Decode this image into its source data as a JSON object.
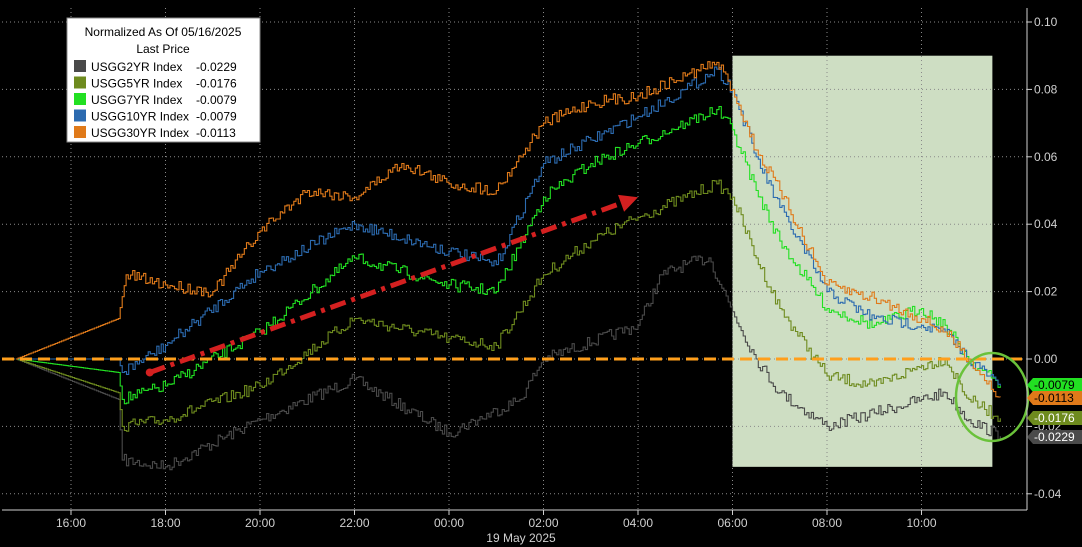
{
  "chart_data": {
    "type": "line",
    "legend": {
      "title_line1": "Normalized As Of 05/16/2025",
      "title_line2": "Last Price",
      "placement": "top-left"
    },
    "date_label": "19 May 2025",
    "x_ticks": [
      "16:00",
      "18:00",
      "20:00",
      "22:00",
      "00:00",
      "02:00",
      "04:00",
      "06:00",
      "08:00",
      "10:00"
    ],
    "y_ticks": [
      "0.10",
      "0.08",
      "0.06",
      "0.04",
      "0.02",
      "0.00",
      "-0.02",
      "-0.04"
    ],
    "ylim": [
      -0.045,
      0.105
    ],
    "grid": true,
    "reference_line": {
      "y": 0.0,
      "color": "#ff9f1c",
      "style": "dashed"
    },
    "shaded_region": {
      "x_start": "06:00",
      "x_end": "11:30",
      "y_range": [
        -0.032,
        0.09
      ],
      "color": "#dff1d4"
    },
    "series": [
      {
        "name": "USGG2YR Index",
        "last_label": "-0.0229",
        "color": "#4a4a4a",
        "points": [
          [
            "14:50",
            0.0
          ],
          [
            "17:00",
            -0.012
          ],
          [
            "17:05",
            -0.03
          ],
          [
            "18:00",
            -0.032
          ],
          [
            "20:00",
            -0.018
          ],
          [
            "22:00",
            -0.006
          ],
          [
            "00:00",
            -0.022
          ],
          [
            "01:30",
            -0.012
          ],
          [
            "02:00",
            0.0
          ],
          [
            "04:00",
            0.01
          ],
          [
            "04:30",
            0.025
          ],
          [
            "05:00",
            0.028
          ],
          [
            "05:30",
            0.03
          ],
          [
            "06:00",
            0.014
          ],
          [
            "06:30",
            0.0
          ],
          [
            "07:00",
            -0.01
          ],
          [
            "08:00",
            -0.02
          ],
          [
            "09:00",
            -0.016
          ],
          [
            "10:00",
            -0.012
          ],
          [
            "10:30",
            -0.01
          ],
          [
            "11:00",
            -0.018
          ],
          [
            "11:40",
            -0.0229
          ]
        ]
      },
      {
        "name": "USGG5YR Index",
        "last_label": "-0.0176",
        "color": "#6e8b1e",
        "points": [
          [
            "14:50",
            0.0
          ],
          [
            "17:00",
            -0.01
          ],
          [
            "17:05",
            -0.02
          ],
          [
            "18:00",
            -0.018
          ],
          [
            "20:00",
            -0.008
          ],
          [
            "22:00",
            0.012
          ],
          [
            "00:00",
            0.006
          ],
          [
            "01:00",
            0.004
          ],
          [
            "02:00",
            0.025
          ],
          [
            "03:00",
            0.035
          ],
          [
            "04:00",
            0.042
          ],
          [
            "05:00",
            0.048
          ],
          [
            "05:40",
            0.052
          ],
          [
            "06:00",
            0.048
          ],
          [
            "06:30",
            0.03
          ],
          [
            "07:00",
            0.015
          ],
          [
            "08:00",
            -0.005
          ],
          [
            "09:00",
            -0.008
          ],
          [
            "10:00",
            -0.002
          ],
          [
            "10:30",
            0.0
          ],
          [
            "11:00",
            -0.012
          ],
          [
            "11:40",
            -0.0176
          ]
        ]
      },
      {
        "name": "USGG7YR Index",
        "last_label": "-0.0079",
        "color": "#22e022",
        "points": [
          [
            "14:50",
            0.0
          ],
          [
            "17:00",
            -0.004
          ],
          [
            "17:05",
            -0.012
          ],
          [
            "18:00",
            -0.008
          ],
          [
            "20:00",
            0.008
          ],
          [
            "22:00",
            0.03
          ],
          [
            "00:00",
            0.022
          ],
          [
            "01:00",
            0.02
          ],
          [
            "02:00",
            0.048
          ],
          [
            "03:00",
            0.058
          ],
          [
            "04:00",
            0.064
          ],
          [
            "05:00",
            0.07
          ],
          [
            "05:40",
            0.074
          ],
          [
            "06:00",
            0.068
          ],
          [
            "06:30",
            0.05
          ],
          [
            "07:00",
            0.035
          ],
          [
            "08:00",
            0.015
          ],
          [
            "09:00",
            0.01
          ],
          [
            "10:00",
            0.015
          ],
          [
            "10:30",
            0.01
          ],
          [
            "11:00",
            0.0
          ],
          [
            "11:40",
            -0.0079
          ]
        ]
      },
      {
        "name": "USGG10YR Index",
        "last_label": "-0.0079",
        "color": "#2c6bb0",
        "points": [
          [
            "14:50",
            0.0
          ],
          [
            "17:00",
            0.0
          ],
          [
            "17:05",
            -0.004
          ],
          [
            "18:00",
            0.004
          ],
          [
            "20:00",
            0.026
          ],
          [
            "22:00",
            0.04
          ],
          [
            "00:00",
            0.032
          ],
          [
            "01:00",
            0.028
          ],
          [
            "02:00",
            0.058
          ],
          [
            "03:00",
            0.065
          ],
          [
            "04:00",
            0.072
          ],
          [
            "05:00",
            0.08
          ],
          [
            "05:40",
            0.086
          ],
          [
            "06:00",
            0.08
          ],
          [
            "06:30",
            0.06
          ],
          [
            "07:00",
            0.045
          ],
          [
            "08:00",
            0.02
          ],
          [
            "09:00",
            0.012
          ],
          [
            "10:00",
            0.01
          ],
          [
            "10:30",
            0.008
          ],
          [
            "11:00",
            0.0
          ],
          [
            "11:40",
            -0.0079
          ]
        ]
      },
      {
        "name": "USGG30YR Index",
        "last_label": "-0.0113",
        "color": "#e07a1a",
        "points": [
          [
            "14:50",
            0.0
          ],
          [
            "17:00",
            0.012
          ],
          [
            "17:10",
            0.025
          ],
          [
            "18:00",
            0.022
          ],
          [
            "19:00",
            0.02
          ],
          [
            "20:00",
            0.038
          ],
          [
            "21:00",
            0.05
          ],
          [
            "22:00",
            0.048
          ],
          [
            "23:00",
            0.058
          ],
          [
            "00:00",
            0.052
          ],
          [
            "01:00",
            0.05
          ],
          [
            "02:00",
            0.07
          ],
          [
            "03:00",
            0.076
          ],
          [
            "04:00",
            0.078
          ],
          [
            "05:00",
            0.084
          ],
          [
            "05:40",
            0.088
          ],
          [
            "06:00",
            0.08
          ],
          [
            "06:30",
            0.062
          ],
          [
            "07:00",
            0.05
          ],
          [
            "08:00",
            0.022
          ],
          [
            "09:00",
            0.018
          ],
          [
            "10:00",
            0.012
          ],
          [
            "10:30",
            0.008
          ],
          [
            "11:00",
            0.0
          ],
          [
            "11:40",
            -0.0113
          ]
        ]
      }
    ],
    "annotation_arrow": {
      "from": [
        "17:40",
        -0.004
      ],
      "to": [
        "04:00",
        0.048
      ],
      "color": "#d42020"
    }
  }
}
